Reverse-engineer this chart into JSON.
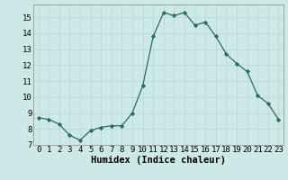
{
  "x": [
    0,
    1,
    2,
    3,
    4,
    5,
    6,
    7,
    8,
    9,
    10,
    11,
    12,
    13,
    14,
    15,
    16,
    17,
    18,
    19,
    20,
    21,
    22,
    23
  ],
  "y": [
    8.7,
    8.6,
    8.3,
    7.6,
    7.3,
    7.9,
    8.1,
    8.2,
    8.2,
    9.0,
    10.7,
    13.8,
    15.3,
    15.1,
    15.3,
    14.5,
    14.7,
    13.8,
    12.7,
    12.1,
    11.6,
    10.1,
    9.6,
    8.6
  ],
  "line_color": "#2d6b5e",
  "marker": "D",
  "marker_size": 2.2,
  "bg_color": "#cce9e8",
  "grid_major_color": "#b8d4d3",
  "grid_minor_color": "#d4e8e7",
  "xlabel": "Humidex (Indice chaleur)",
  "xlim": [
    -0.5,
    23.5
  ],
  "ylim": [
    7,
    15.8
  ],
  "yticks": [
    7,
    8,
    9,
    10,
    11,
    12,
    13,
    14,
    15
  ],
  "xtick_labels": [
    "0",
    "1",
    "2",
    "3",
    "4",
    "5",
    "6",
    "7",
    "8",
    "9",
    "10",
    "11",
    "12",
    "13",
    "14",
    "15",
    "16",
    "17",
    "18",
    "19",
    "20",
    "21",
    "22",
    "23"
  ],
  "tick_fontsize": 6.5,
  "xlabel_fontsize": 7.5
}
